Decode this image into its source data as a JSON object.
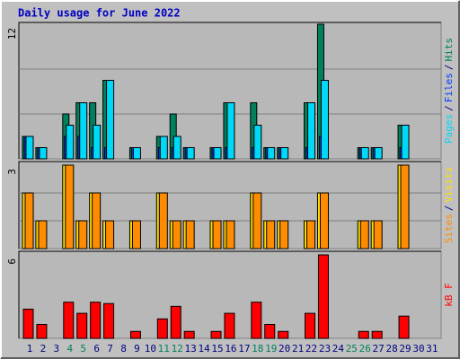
{
  "chart_data": {
    "type": "bar",
    "title": "Daily usage for June 2022",
    "categories": [
      1,
      2,
      3,
      4,
      5,
      6,
      7,
      8,
      9,
      10,
      11,
      12,
      13,
      14,
      15,
      16,
      17,
      18,
      19,
      20,
      21,
      22,
      23,
      24,
      25,
      26,
      27,
      28,
      29,
      30,
      31
    ],
    "category_colors": [
      "#000080",
      "#000080",
      "#000080",
      "#00805c",
      "#00805c",
      "#000080",
      "#000080",
      "#000080",
      "#000080",
      "#000080",
      "#00805c",
      "#00805c",
      "#000080",
      "#000080",
      "#000080",
      "#000080",
      "#000080",
      "#00805c",
      "#00805c",
      "#000080",
      "#000080",
      "#000080",
      "#000080",
      "#000080",
      "#00805c",
      "#00805c",
      "#000080",
      "#000080",
      "#000080",
      "#000080",
      "#000080"
    ],
    "legend_separator": "/",
    "panels": [
      {
        "ylim": [
          0,
          12
        ],
        "yticks": [
          12
        ],
        "gridlines": [
          4,
          8
        ],
        "series": [
          {
            "name": "Hits",
            "color": "#00805c",
            "values": [
              2,
              1,
              0,
              4,
              5,
              5,
              7,
              0,
              1,
              0,
              2,
              4,
              1,
              0,
              1,
              5,
              0,
              5,
              1,
              1,
              0,
              5,
              12,
              0,
              0,
              1,
              1,
              0,
              3,
              0,
              0
            ]
          },
          {
            "name": "Files",
            "color": "#0040ff",
            "values": [
              2,
              1,
              0,
              2,
              2,
              1,
              1,
              0,
              1,
              0,
              1,
              1,
              1,
              0,
              1,
              1,
              0,
              1,
              1,
              1,
              0,
              1,
              2,
              0,
              0,
              1,
              1,
              0,
              1,
              0,
              0
            ]
          },
          {
            "name": "Pages",
            "color": "#00d8f8",
            "values": [
              2,
              1,
              0,
              3,
              5,
              3,
              7,
              0,
              1,
              0,
              2,
              2,
              1,
              0,
              1,
              5,
              0,
              3,
              1,
              1,
              0,
              5,
              7,
              0,
              0,
              1,
              1,
              0,
              3,
              0,
              0
            ]
          }
        ]
      },
      {
        "ylim": [
          0,
          3
        ],
        "yticks": [
          3
        ],
        "gridlines": [
          1,
          2
        ],
        "series": [
          {
            "name": "Visits",
            "color": "#ffe000",
            "values": [
              2,
              1,
              0,
              3,
              1,
              2,
              1,
              0,
              1,
              0,
              2,
              1,
              1,
              0,
              1,
              1,
              0,
              2,
              1,
              1,
              0,
              1,
              2,
              0,
              0,
              1,
              1,
              0,
              3,
              0,
              0
            ]
          },
          {
            "name": "Sites",
            "color": "#ff8c00",
            "values": [
              2,
              1,
              0,
              3,
              1,
              2,
              1,
              0,
              1,
              0,
              2,
              1,
              1,
              0,
              1,
              1,
              0,
              2,
              1,
              1,
              0,
              1,
              2,
              0,
              0,
              1,
              1,
              0,
              3,
              0,
              0
            ]
          }
        ]
      },
      {
        "ylim": [
          0,
          6
        ],
        "yticks": [
          6
        ],
        "gridlines": [],
        "series": [
          {
            "name": "kB F",
            "color": "#ff0000",
            "values": [
              2.1,
              1,
              0,
              2.6,
              1.8,
              2.6,
              2.5,
              0,
              0.5,
              0,
              1.4,
              2.3,
              0.5,
              0,
              0.5,
              1.8,
              0,
              2.6,
              1,
              0.5,
              0,
              1.8,
              6,
              0,
              0,
              0.5,
              0.5,
              0,
              1.6,
              0,
              0
            ]
          }
        ]
      }
    ]
  }
}
